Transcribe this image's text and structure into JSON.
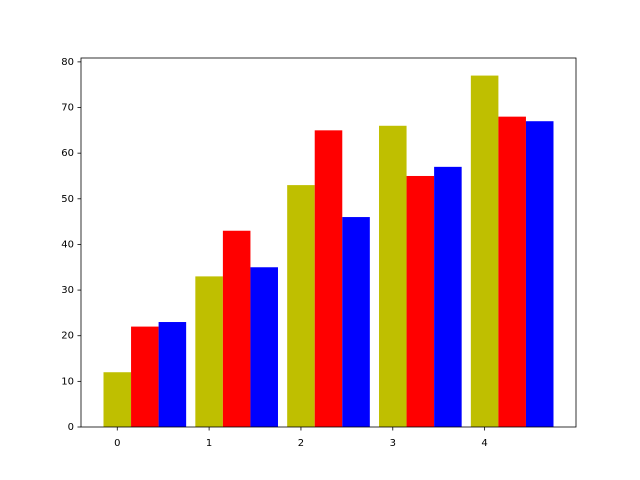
{
  "chart_data": {
    "type": "bar",
    "x": [
      0,
      1,
      2,
      3,
      4
    ],
    "series": [
      {
        "color": "#bfbf00",
        "values": [
          12,
          33,
          53,
          66,
          77
        ]
      },
      {
        "color": "#ff0000",
        "values": [
          22,
          43,
          65,
          55,
          68
        ]
      },
      {
        "color": "#0000ff",
        "values": [
          23,
          35,
          46,
          57,
          67
        ]
      }
    ],
    "xlim": [
      -0.395,
      4.995
    ],
    "xticks": [
      0,
      1,
      2,
      3,
      4
    ],
    "ylim": [
      0,
      80.85
    ],
    "yticks": [
      0,
      10,
      20,
      30,
      40,
      50,
      60,
      70,
      80
    ]
  }
}
